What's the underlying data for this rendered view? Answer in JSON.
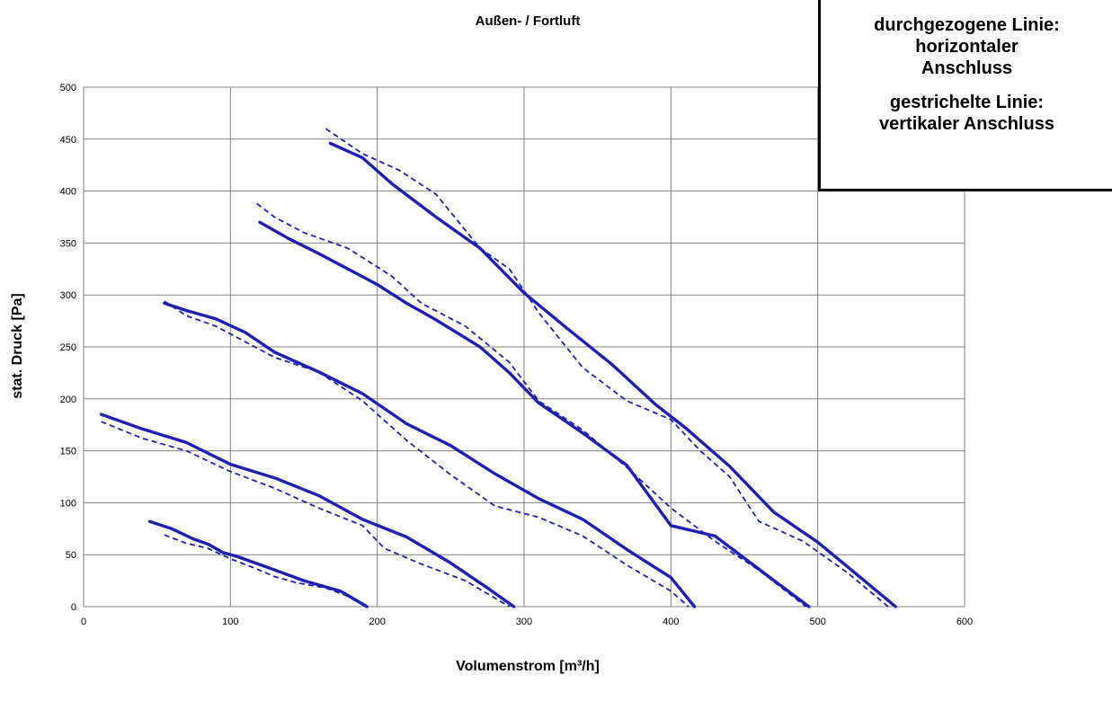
{
  "chart_data": {
    "type": "line",
    "title": "Außen- / Fortluft",
    "xlabel": "Volumenstrom  [m³/h]",
    "ylabel": "stat. Druck [Pa]",
    "xlim": [
      0,
      600
    ],
    "ylim": [
      0,
      500
    ],
    "xticks": [
      0,
      100,
      200,
      300,
      400,
      500,
      600
    ],
    "yticks": [
      0,
      50,
      100,
      150,
      200,
      250,
      300,
      350,
      400,
      450,
      500
    ],
    "grid": true,
    "line_color": "#1f1fb5",
    "series": [
      {
        "style": "solid",
        "x": [
          45,
          60,
          75,
          85,
          95,
          105,
          125,
          150,
          175,
          193
        ],
        "y": [
          82,
          75,
          65,
          60,
          52,
          48,
          38,
          25,
          15,
          0
        ]
      },
      {
        "style": "dashed",
        "x": [
          55,
          70,
          85,
          100,
          115,
          130,
          145,
          165,
          180,
          192
        ],
        "y": [
          69,
          61,
          56,
          46,
          38,
          29,
          23,
          18,
          10,
          0
        ]
      },
      {
        "style": "solid",
        "x": [
          12,
          40,
          70,
          100,
          130,
          160,
          190,
          220,
          250,
          275,
          293
        ],
        "y": [
          185,
          171,
          158,
          137,
          124,
          107,
          84,
          67,
          42,
          18,
          0
        ]
      },
      {
        "style": "dashed",
        "x": [
          12,
          40,
          70,
          100,
          130,
          160,
          190,
          205,
          230,
          260,
          290
        ],
        "y": [
          178,
          162,
          150,
          130,
          114,
          95,
          78,
          56,
          41,
          25,
          0
        ]
      },
      {
        "style": "solid",
        "x": [
          55,
          70,
          90,
          110,
          130,
          160,
          190,
          220,
          250,
          280,
          310,
          340,
          370,
          400,
          416
        ],
        "y": [
          292,
          285,
          277,
          264,
          245,
          226,
          205,
          176,
          155,
          128,
          104,
          84,
          55,
          28,
          0
        ]
      },
      {
        "style": "dashed",
        "x": [
          55,
          70,
          90,
          110,
          130,
          160,
          190,
          220,
          250,
          280,
          310,
          340,
          370,
          400,
          412
        ],
        "y": [
          294,
          280,
          270,
          255,
          240,
          226,
          198,
          160,
          127,
          97,
          86,
          68,
          40,
          15,
          0
        ]
      },
      {
        "style": "solid",
        "x": [
          120,
          140,
          160,
          180,
          200,
          220,
          240,
          270,
          290,
          310,
          340,
          370,
          400,
          430,
          460,
          494
        ],
        "y": [
          370,
          354,
          340,
          325,
          310,
          292,
          276,
          250,
          225,
          196,
          167,
          136,
          78,
          68,
          36,
          0
        ]
      },
      {
        "style": "dashed",
        "x": [
          118,
          130,
          150,
          180,
          210,
          230,
          260,
          290,
          310,
          340,
          370,
          400,
          430,
          460,
          492
        ],
        "y": [
          388,
          375,
          360,
          345,
          318,
          292,
          270,
          235,
          198,
          170,
          134,
          95,
          63,
          35,
          0
        ]
      },
      {
        "style": "solid",
        "x": [
          168,
          190,
          210,
          240,
          270,
          300,
          330,
          360,
          390,
          410,
          440,
          470,
          500,
          530,
          553
        ],
        "y": [
          446,
          432,
          407,
          375,
          345,
          302,
          267,
          233,
          194,
          172,
          135,
          91,
          62,
          27,
          0
        ]
      },
      {
        "style": "dashed",
        "x": [
          165,
          190,
          215,
          240,
          270,
          290,
          310,
          340,
          370,
          400,
          420,
          440,
          460,
          490,
          520,
          548
        ],
        "y": [
          460,
          436,
          420,
          397,
          345,
          325,
          283,
          230,
          198,
          180,
          150,
          125,
          82,
          63,
          33,
          0
        ]
      }
    ]
  },
  "legend": {
    "line1": "durchgezogene Linie:",
    "line2": "horizontaler",
    "line3": "Anschluss",
    "line4": "gestrichelte Linie:",
    "line5": "vertikaler Anschluss"
  }
}
